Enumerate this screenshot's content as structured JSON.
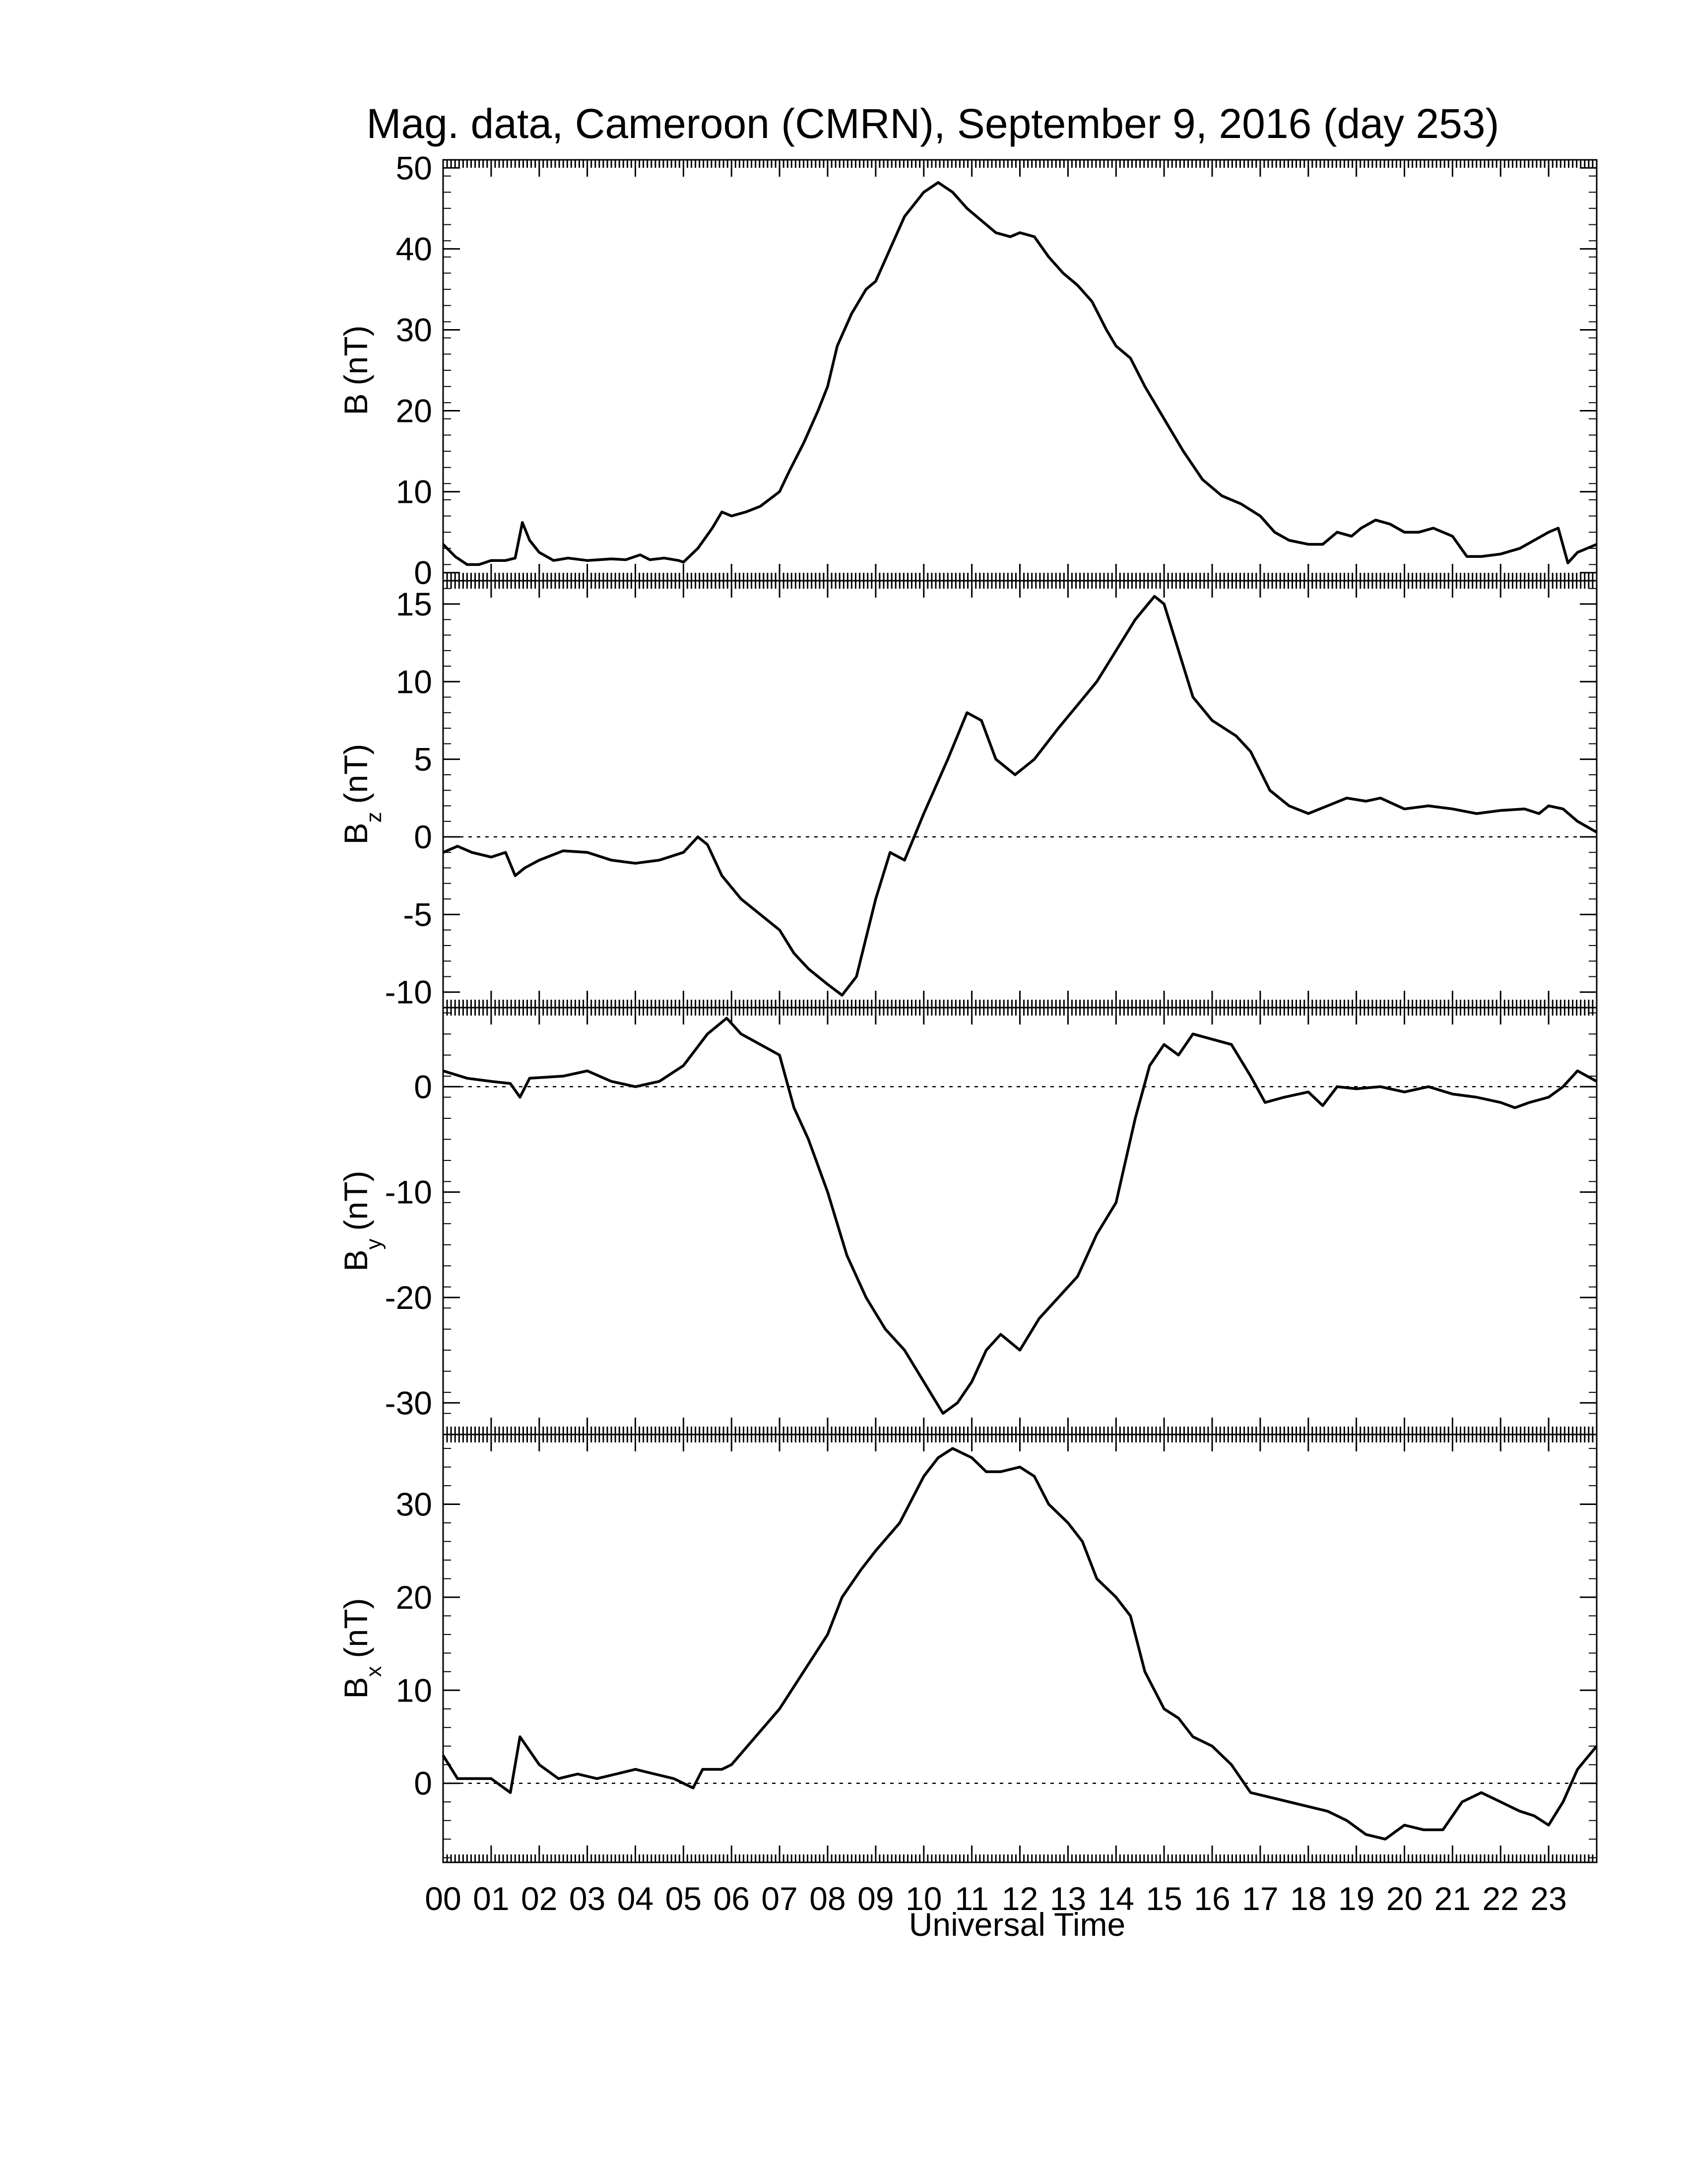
{
  "chart_data": {
    "type": "line",
    "title": "Mag. data, Cameroon (CMRN), September 9, 2016 (day 253)",
    "xlabel": "Universal Time",
    "xlim": [
      0,
      24
    ],
    "x_tick_labels": [
      "00",
      "01",
      "02",
      "03",
      "04",
      "05",
      "06",
      "07",
      "08",
      "09",
      "10",
      "11",
      "12",
      "13",
      "14",
      "15",
      "16",
      "17",
      "18",
      "19",
      "20",
      "21",
      "22",
      "23"
    ],
    "line_color": "#000000",
    "panels": [
      {
        "name": "B",
        "ylabel_main": "B",
        "ylabel_sub": "",
        "ylabel_unit": "(nT)",
        "ylim": [
          -1,
          51
        ],
        "yticks": [
          0,
          10,
          20,
          30,
          40,
          50
        ],
        "zero_line": false,
        "points": [
          [
            0,
            3.5
          ],
          [
            0.25,
            2
          ],
          [
            0.5,
            1
          ],
          [
            0.75,
            1
          ],
          [
            1,
            1.5
          ],
          [
            1.3,
            1.5
          ],
          [
            1.5,
            1.8
          ],
          [
            1.65,
            6.2
          ],
          [
            1.8,
            4
          ],
          [
            2,
            2.5
          ],
          [
            2.3,
            1.5
          ],
          [
            2.6,
            1.8
          ],
          [
            3,
            1.5
          ],
          [
            3.5,
            1.7
          ],
          [
            3.8,
            1.6
          ],
          [
            4.1,
            2.2
          ],
          [
            4.3,
            1.6
          ],
          [
            4.6,
            1.8
          ],
          [
            4.9,
            1.5
          ],
          [
            5,
            1.3
          ],
          [
            5.3,
            3
          ],
          [
            5.6,
            5.5
          ],
          [
            5.8,
            7.5
          ],
          [
            6,
            7
          ],
          [
            6.3,
            7.5
          ],
          [
            6.6,
            8.2
          ],
          [
            7,
            10
          ],
          [
            7.2,
            12.5
          ],
          [
            7.5,
            16
          ],
          [
            7.8,
            20
          ],
          [
            8,
            23
          ],
          [
            8.2,
            28
          ],
          [
            8.5,
            32
          ],
          [
            8.8,
            35
          ],
          [
            9,
            36
          ],
          [
            9.3,
            40
          ],
          [
            9.6,
            44
          ],
          [
            10,
            47
          ],
          [
            10.3,
            48.2
          ],
          [
            10.6,
            47
          ],
          [
            10.9,
            45
          ],
          [
            11.2,
            43.5
          ],
          [
            11.5,
            42
          ],
          [
            11.8,
            41.5
          ],
          [
            12,
            42
          ],
          [
            12.3,
            41.5
          ],
          [
            12.6,
            39
          ],
          [
            12.9,
            37
          ],
          [
            13.2,
            35.5
          ],
          [
            13.5,
            33.5
          ],
          [
            13.8,
            30
          ],
          [
            14,
            28
          ],
          [
            14.3,
            26.5
          ],
          [
            14.6,
            23
          ],
          [
            15,
            19
          ],
          [
            15.4,
            15
          ],
          [
            15.8,
            11.5
          ],
          [
            16.2,
            9.5
          ],
          [
            16.6,
            8.5
          ],
          [
            17,
            7
          ],
          [
            17.3,
            5
          ],
          [
            17.6,
            4
          ],
          [
            18,
            3.5
          ],
          [
            18.3,
            3.5
          ],
          [
            18.6,
            5
          ],
          [
            18.9,
            4.5
          ],
          [
            19.1,
            5.5
          ],
          [
            19.4,
            6.5
          ],
          [
            19.7,
            6
          ],
          [
            20,
            5
          ],
          [
            20.3,
            5
          ],
          [
            20.6,
            5.5
          ],
          [
            21,
            4.5
          ],
          [
            21.3,
            2
          ],
          [
            21.6,
            2
          ],
          [
            22,
            2.3
          ],
          [
            22.4,
            3
          ],
          [
            22.7,
            4
          ],
          [
            23,
            5
          ],
          [
            23.2,
            5.5
          ],
          [
            23.4,
            1.2
          ],
          [
            23.6,
            2.5
          ],
          [
            24,
            3.5
          ]
        ]
      },
      {
        "name": "Bz",
        "ylabel_main": "B",
        "ylabel_sub": "z",
        "ylabel_unit": "(nT)",
        "ylim": [
          -11,
          16.5
        ],
        "yticks": [
          -10,
          -5,
          0,
          5,
          10,
          15
        ],
        "zero_line": true,
        "points": [
          [
            0,
            -1
          ],
          [
            0.3,
            -0.6
          ],
          [
            0.6,
            -1
          ],
          [
            1,
            -1.3
          ],
          [
            1.3,
            -1
          ],
          [
            1.5,
            -2.5
          ],
          [
            1.7,
            -2
          ],
          [
            2,
            -1.5
          ],
          [
            2.5,
            -0.9
          ],
          [
            3,
            -1
          ],
          [
            3.5,
            -1.5
          ],
          [
            4,
            -1.7
          ],
          [
            4.5,
            -1.5
          ],
          [
            5,
            -1
          ],
          [
            5.3,
            0
          ],
          [
            5.5,
            -0.5
          ],
          [
            5.8,
            -2.5
          ],
          [
            6.2,
            -4
          ],
          [
            6.6,
            -5
          ],
          [
            7,
            -6
          ],
          [
            7.3,
            -7.5
          ],
          [
            7.6,
            -8.5
          ],
          [
            8,
            -9.5
          ],
          [
            8.3,
            -10.2
          ],
          [
            8.6,
            -9
          ],
          [
            9,
            -4
          ],
          [
            9.3,
            -1
          ],
          [
            9.6,
            -1.5
          ],
          [
            10,
            1.5
          ],
          [
            10.5,
            5
          ],
          [
            10.9,
            8
          ],
          [
            11.2,
            7.5
          ],
          [
            11.5,
            5
          ],
          [
            11.9,
            4
          ],
          [
            12.3,
            5
          ],
          [
            12.8,
            7
          ],
          [
            13.2,
            8.5
          ],
          [
            13.6,
            10
          ],
          [
            14,
            12
          ],
          [
            14.4,
            14
          ],
          [
            14.8,
            15.5
          ],
          [
            15,
            15
          ],
          [
            15.3,
            12
          ],
          [
            15.6,
            9
          ],
          [
            16,
            7.5
          ],
          [
            16.5,
            6.5
          ],
          [
            16.8,
            5.5
          ],
          [
            17.2,
            3
          ],
          [
            17.6,
            2
          ],
          [
            18,
            1.5
          ],
          [
            18.4,
            2
          ],
          [
            18.8,
            2.5
          ],
          [
            19.2,
            2.3
          ],
          [
            19.5,
            2.5
          ],
          [
            20,
            1.8
          ],
          [
            20.5,
            2
          ],
          [
            21,
            1.8
          ],
          [
            21.5,
            1.5
          ],
          [
            22,
            1.7
          ],
          [
            22.5,
            1.8
          ],
          [
            22.8,
            1.5
          ],
          [
            23,
            2
          ],
          [
            23.3,
            1.8
          ],
          [
            23.6,
            1
          ],
          [
            24,
            0.3
          ]
        ]
      },
      {
        "name": "By",
        "ylabel_main": "B",
        "ylabel_sub": "y",
        "ylabel_unit": "(nT)",
        "ylim": [
          -33,
          7.5
        ],
        "yticks": [
          -30,
          -20,
          -10,
          0
        ],
        "zero_line": true,
        "points": [
          [
            0,
            1.5
          ],
          [
            0.5,
            0.8
          ],
          [
            1,
            0.5
          ],
          [
            1.4,
            0.3
          ],
          [
            1.6,
            -1
          ],
          [
            1.8,
            0.8
          ],
          [
            2.5,
            1
          ],
          [
            3,
            1.5
          ],
          [
            3.5,
            0.5
          ],
          [
            4,
            0
          ],
          [
            4.5,
            0.5
          ],
          [
            5,
            2
          ],
          [
            5.5,
            5
          ],
          [
            5.9,
            6.5
          ],
          [
            6.2,
            5
          ],
          [
            6.6,
            4
          ],
          [
            7,
            3
          ],
          [
            7.3,
            -2
          ],
          [
            7.6,
            -5
          ],
          [
            8,
            -10
          ],
          [
            8.4,
            -16
          ],
          [
            8.8,
            -20
          ],
          [
            9.2,
            -23
          ],
          [
            9.6,
            -25
          ],
          [
            10,
            -28
          ],
          [
            10.4,
            -31
          ],
          [
            10.7,
            -30
          ],
          [
            11,
            -28
          ],
          [
            11.3,
            -25
          ],
          [
            11.6,
            -23.5
          ],
          [
            12,
            -25
          ],
          [
            12.4,
            -22
          ],
          [
            12.8,
            -20
          ],
          [
            13.2,
            -18
          ],
          [
            13.6,
            -14
          ],
          [
            14,
            -11
          ],
          [
            14.4,
            -3
          ],
          [
            14.7,
            2
          ],
          [
            15,
            4
          ],
          [
            15.3,
            3
          ],
          [
            15.6,
            5
          ],
          [
            16,
            4.5
          ],
          [
            16.4,
            4
          ],
          [
            16.8,
            1
          ],
          [
            17.1,
            -1.5
          ],
          [
            17.5,
            -1
          ],
          [
            18,
            -0.5
          ],
          [
            18.3,
            -1.8
          ],
          [
            18.6,
            0
          ],
          [
            19,
            -0.2
          ],
          [
            19.5,
            0
          ],
          [
            20,
            -0.5
          ],
          [
            20.5,
            0
          ],
          [
            21,
            -0.7
          ],
          [
            21.5,
            -1
          ],
          [
            22,
            -1.5
          ],
          [
            22.3,
            -2
          ],
          [
            22.6,
            -1.5
          ],
          [
            23,
            -1
          ],
          [
            23.3,
            0
          ],
          [
            23.6,
            1.5
          ],
          [
            24,
            0.5
          ]
        ]
      },
      {
        "name": "Bx",
        "ylabel_main": "B",
        "ylabel_sub": "x",
        "ylabel_unit": "(nT)",
        "ylim": [
          -8.5,
          37.5
        ],
        "yticks": [
          0,
          10,
          20,
          30
        ],
        "zero_line": true,
        "points": [
          [
            0,
            3
          ],
          [
            0.3,
            0.5
          ],
          [
            0.6,
            0.5
          ],
          [
            1,
            0.5
          ],
          [
            1.4,
            -1
          ],
          [
            1.6,
            5
          ],
          [
            1.8,
            3.5
          ],
          [
            2,
            2
          ],
          [
            2.4,
            0.5
          ],
          [
            2.8,
            1
          ],
          [
            3.2,
            0.5
          ],
          [
            3.6,
            1
          ],
          [
            4,
            1.5
          ],
          [
            4.4,
            1
          ],
          [
            4.8,
            0.5
          ],
          [
            5.2,
            -0.5
          ],
          [
            5.4,
            1.5
          ],
          [
            5.8,
            1.5
          ],
          [
            6,
            2
          ],
          [
            6.5,
            5
          ],
          [
            7,
            8
          ],
          [
            7.5,
            12
          ],
          [
            8,
            16
          ],
          [
            8.3,
            20
          ],
          [
            8.7,
            23
          ],
          [
            9,
            25
          ],
          [
            9.5,
            28
          ],
          [
            9.8,
            31
          ],
          [
            10,
            33
          ],
          [
            10.3,
            35
          ],
          [
            10.6,
            36
          ],
          [
            11,
            35
          ],
          [
            11.3,
            33.5
          ],
          [
            11.6,
            33.5
          ],
          [
            12,
            34
          ],
          [
            12.3,
            33
          ],
          [
            12.6,
            30
          ],
          [
            13,
            28
          ],
          [
            13.3,
            26
          ],
          [
            13.6,
            22
          ],
          [
            14,
            20
          ],
          [
            14.3,
            18
          ],
          [
            14.6,
            12
          ],
          [
            15,
            8
          ],
          [
            15.3,
            7
          ],
          [
            15.6,
            5
          ],
          [
            16,
            4
          ],
          [
            16.4,
            2
          ],
          [
            16.8,
            -1
          ],
          [
            17.2,
            -1.5
          ],
          [
            17.6,
            -2
          ],
          [
            18,
            -2.5
          ],
          [
            18.4,
            -3
          ],
          [
            18.8,
            -4
          ],
          [
            19.2,
            -5.5
          ],
          [
            19.6,
            -6
          ],
          [
            20,
            -4.5
          ],
          [
            20.4,
            -5
          ],
          [
            20.8,
            -5
          ],
          [
            21.2,
            -2
          ],
          [
            21.6,
            -1
          ],
          [
            22,
            -2
          ],
          [
            22.4,
            -3
          ],
          [
            22.7,
            -3.5
          ],
          [
            23,
            -4.5
          ],
          [
            23.3,
            -2
          ],
          [
            23.6,
            1.5
          ],
          [
            24,
            4
          ]
        ]
      }
    ]
  }
}
